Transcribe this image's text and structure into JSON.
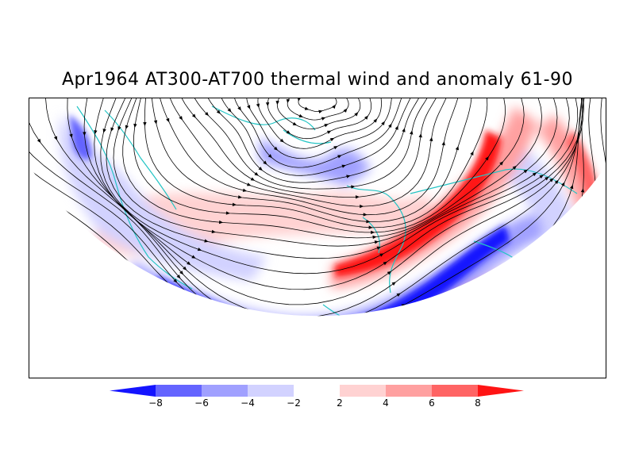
{
  "title": "Apr1964 AT300-AT700 thermal wind and anomaly 61-90",
  "colors": {
    "strong_negative": "#1414ff",
    "negative_3": "#6464ff",
    "negative_2": "#a0a0ff",
    "negative_1": "#d2d2ff",
    "neutral": "#ffffff",
    "positive_1": "#ffd2d2",
    "positive_2": "#ffa0a0",
    "positive_3": "#ff6464",
    "strong_positive": "#ff1414",
    "coastline": "#22c4c4",
    "streamline": "#000000"
  },
  "colorbar": {
    "tick_labels": [
      "−8",
      "−6",
      "−4",
      "−2",
      "2",
      "4",
      "6",
      "8"
    ],
    "boundaries": [
      -8,
      -6,
      -4,
      -2,
      2,
      4,
      6,
      8
    ]
  }
}
